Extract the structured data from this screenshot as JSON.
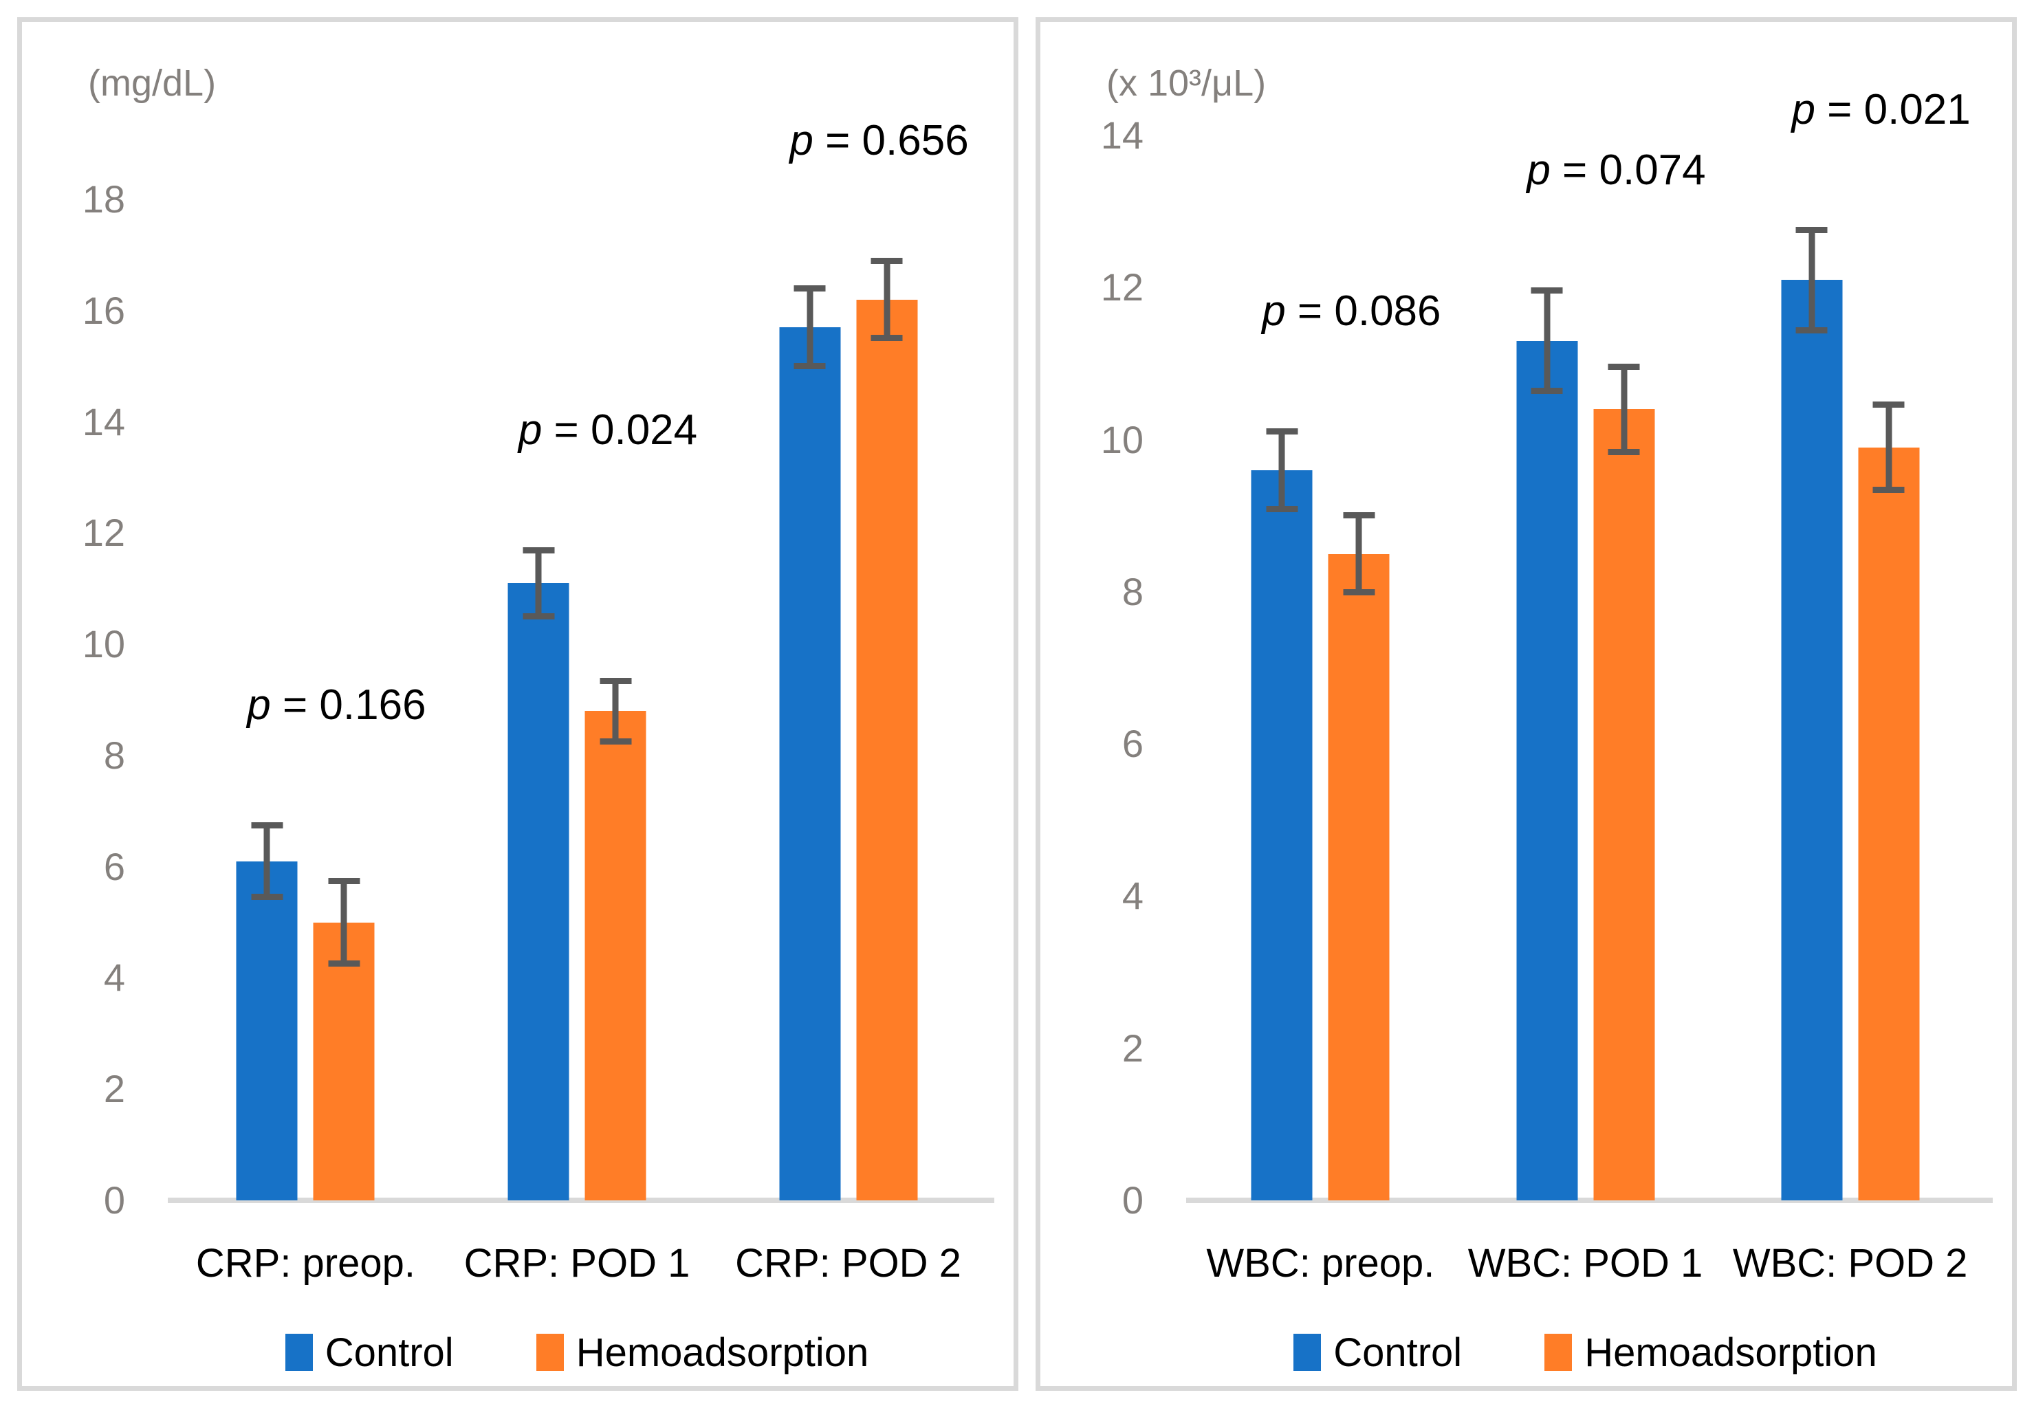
{
  "colors": {
    "control": "#1772C7",
    "hemoadsorption": "#FF7D27",
    "error_bar": "#595959",
    "axis_line": "#D9D9D9",
    "panel_border": "#D9D9D9",
    "tick_text": "#84807D"
  },
  "legend": {
    "items": [
      {
        "label": "Control",
        "color": "#1772C7"
      },
      {
        "label": "Hemoadsorption",
        "color": "#FF7D27"
      }
    ]
  },
  "chart_data": [
    {
      "type": "bar",
      "unit_label": "(mg/dL)",
      "categories": [
        "CRP: preop.",
        "CRP: POD 1",
        "CRP: POD 2"
      ],
      "series": [
        {
          "name": "Control",
          "values": [
            6.1,
            11.1,
            15.7
          ],
          "error": [
            0.7,
            0.65,
            0.75
          ]
        },
        {
          "name": "Hemoadsorption",
          "values": [
            5.0,
            8.8,
            16.2
          ],
          "error": [
            0.8,
            0.6,
            0.75
          ]
        }
      ],
      "p_labels": [
        "p = 0.166",
        "p = 0.024",
        "p = 0.656"
      ],
      "ylim": [
        0,
        18
      ],
      "yticks": [
        0,
        2,
        4,
        6,
        8,
        10,
        12,
        14,
        16,
        18
      ],
      "grid": false,
      "legend_position": "bottom"
    },
    {
      "type": "bar",
      "unit_label": "(x 10³/μL)",
      "categories": [
        "WBC: preop.",
        "WBC: POD 1",
        "WBC: POD 2"
      ],
      "series": [
        {
          "name": "Control",
          "values": [
            9.6,
            11.3,
            12.1
          ],
          "error": [
            0.55,
            0.7,
            0.7
          ]
        },
        {
          "name": "Hemoadsorption",
          "values": [
            8.5,
            10.4,
            9.9
          ],
          "error": [
            0.55,
            0.6,
            0.6
          ]
        }
      ],
      "p_labels": [
        "p = 0.086",
        "p = 0.074",
        "p = 0.021"
      ],
      "ylim": [
        0,
        14
      ],
      "yticks": [
        0,
        2,
        4,
        6,
        8,
        10,
        12,
        14
      ],
      "grid": false,
      "legend_position": "bottom"
    }
  ]
}
